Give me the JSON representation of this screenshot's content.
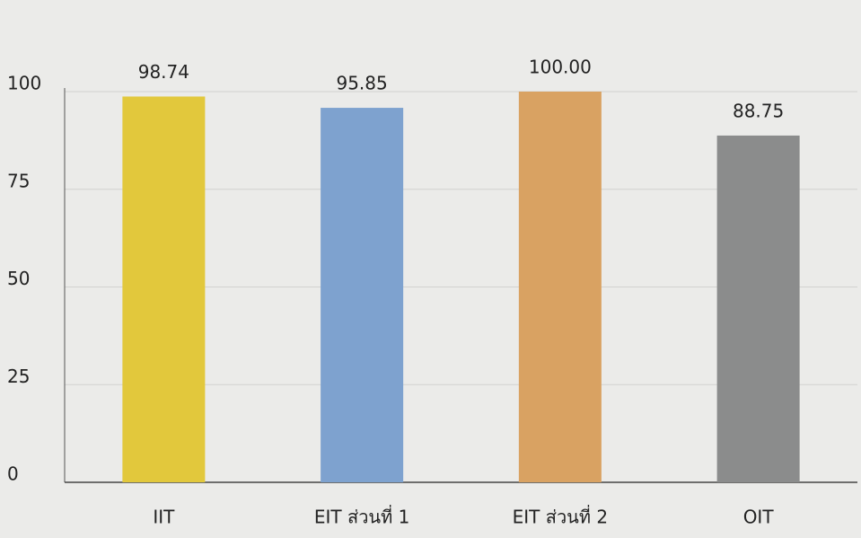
{
  "chart_data": {
    "type": "bar",
    "categories": [
      "IIT",
      "EIT ส่วนที่ 1",
      "EIT ส่วนที่ 2",
      "OIT"
    ],
    "values": [
      98.74,
      95.85,
      100,
      88.75
    ],
    "value_labels": [
      "98.74",
      "95.85",
      "100.00",
      "88.75"
    ],
    "colors": [
      "#e2c83c",
      "#7ea2cf",
      "#d9a262",
      "#8b8c8c"
    ],
    "ylim": [
      0,
      100
    ],
    "yticks": [
      0,
      25,
      50,
      75,
      100
    ],
    "grid": true
  }
}
